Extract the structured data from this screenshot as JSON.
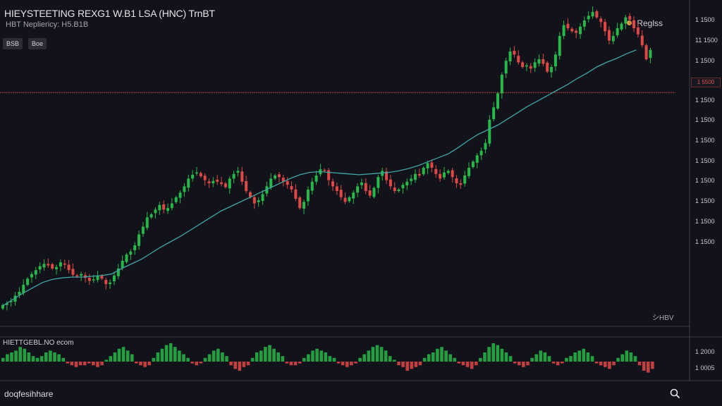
{
  "header": {
    "title": "HIEYSTEETING REXG1 W.B1 LSA (HNC) TrnBT",
    "subtitle": "HBT Nepliericy: H5.B1B",
    "buttons": [
      "BSB",
      "Boe"
    ]
  },
  "legend": {
    "label": "Reglss",
    "color": "#d2a24a"
  },
  "price_line": {
    "label": "1 5500",
    "color": "#c84646"
  },
  "indicator_panel": {
    "title": "HIETTGEBL.NO  ecom",
    "note": "シHBV"
  },
  "footer": {
    "brand": "doqfesihhare"
  },
  "toolbar": {
    "search_icon": "search-icon"
  },
  "colors": {
    "up": "#27b84a",
    "down": "#e04848",
    "ma": "#3fa6a6",
    "background": "#12131a"
  },
  "chart_data": [
    {
      "type": "candlestick",
      "title": "HIEYSTEETING REXG1 W.B1 LSA (HNC) TrnBT",
      "y_tick_labels": [
        "1 5500",
        "1 1500",
        "11 1500",
        "1 1500",
        "1 1500",
        "1 1500",
        "1 1500",
        "1 1500",
        "1 1500",
        "1 1500",
        "1 1500",
        "1 1500"
      ],
      "ylim": [
        100,
        480
      ],
      "reference_line": 397,
      "grid": false,
      "close": [
        123,
        125,
        128,
        135,
        140,
        149,
        157,
        163,
        168,
        173,
        176,
        174,
        170,
        172,
        178,
        175,
        168,
        162,
        160,
        163,
        158,
        154,
        156,
        160,
        157,
        150,
        152,
        161,
        170,
        180,
        188,
        192,
        200,
        214,
        224,
        236,
        240,
        246,
        252,
        246,
        248,
        254,
        262,
        268,
        276,
        286,
        291,
        294,
        289,
        284,
        280,
        283,
        282,
        279,
        275,
        286,
        292,
        296,
        282,
        270,
        262,
        254,
        258,
        266,
        276,
        286,
        290,
        288,
        282,
        278,
        272,
        260,
        248,
        256,
        272,
        282,
        290,
        298,
        296,
        284,
        276,
        270,
        262,
        256,
        262,
        268,
        276,
        281,
        270,
        264,
        274,
        288,
        296,
        284,
        276,
        270,
        272,
        278,
        282,
        286,
        292,
        290,
        300,
        306,
        300,
        292,
        286,
        294,
        296,
        288,
        280,
        278,
        290,
        300,
        308,
        316,
        322,
        332,
        362,
        378,
        396,
        420,
        438,
        450,
        446,
        436,
        430,
        432,
        428,
        436,
        440,
        434,
        424,
        430,
        446,
        470,
        484,
        480,
        476,
        474,
        482,
        490,
        496,
        501,
        494,
        488,
        476,
        464,
        470,
        480,
        486,
        494,
        491,
        480,
        472,
        458,
        440,
        452
      ],
      "ma": [
        122,
        130,
        138,
        145,
        152,
        156,
        158,
        159,
        159,
        160,
        161,
        163,
        170,
        176,
        182,
        190,
        198,
        205,
        212,
        220,
        228,
        236,
        244,
        250,
        256,
        262,
        268,
        274,
        280,
        286,
        291,
        294,
        295,
        294,
        293,
        292,
        291,
        292,
        293,
        294,
        296,
        299,
        303,
        308,
        313,
        318,
        326,
        335,
        343,
        349,
        355,
        363,
        371,
        379,
        386,
        393,
        400,
        407,
        415,
        422,
        430,
        436,
        441,
        447,
        452
      ],
      "ma_start_index": 0,
      "ma_step": 2.4
    },
    {
      "type": "bar",
      "title": "HIETTGEBL.NO  ecom",
      "y_tick_labels": [
        "1 2000",
        "1 0005"
      ],
      "values": [
        0.2,
        0.4,
        0.5,
        0.6,
        0.8,
        0.7,
        0.5,
        0.3,
        0.2,
        0.3,
        0.5,
        0.6,
        0.5,
        0.4,
        0.2,
        -0.1,
        -0.2,
        -0.3,
        -0.2,
        -0.2,
        -0.1,
        -0.2,
        -0.3,
        -0.2,
        0.1,
        0.3,
        0.5,
        0.7,
        0.8,
        0.6,
        0.4,
        -0.1,
        -0.2,
        -0.3,
        -0.2,
        0.2,
        0.5,
        0.7,
        0.9,
        1.0,
        0.8,
        0.6,
        0.4,
        0.2,
        -0.1,
        -0.2,
        -0.1,
        0.2,
        0.4,
        0.6,
        0.7,
        0.5,
        0.3,
        -0.2,
        -0.4,
        -0.5,
        -0.3,
        -0.2,
        0.2,
        0.5,
        0.6,
        0.8,
        0.9,
        0.7,
        0.5,
        0.3,
        -0.1,
        -0.2,
        -0.2,
        -0.1,
        0.2,
        0.4,
        0.6,
        0.7,
        0.6,
        0.5,
        0.3,
        0.2,
        -0.1,
        -0.2,
        -0.3,
        -0.2,
        -0.1,
        0.2,
        0.4,
        0.6,
        0.8,
        0.9,
        0.8,
        0.6,
        0.3,
        0.1,
        -0.2,
        -0.3,
        -0.5,
        -0.4,
        -0.3,
        -0.2,
        0.2,
        0.4,
        0.5,
        0.7,
        0.8,
        0.6,
        0.4,
        0.2,
        -0.1,
        -0.2,
        -0.3,
        -0.4,
        -0.2,
        0.2,
        0.5,
        0.8,
        1.0,
        0.9,
        0.7,
        0.5,
        0.3,
        -0.1,
        -0.2,
        -0.3,
        -0.2,
        0.2,
        0.4,
        0.6,
        0.5,
        0.3,
        -0.1,
        -0.2,
        -0.1,
        0.2,
        0.3,
        0.5,
        0.6,
        0.7,
        0.5,
        0.3,
        -0.1,
        -0.2,
        -0.3,
        -0.4,
        -0.2,
        0.2,
        0.4,
        0.6,
        0.5,
        0.3,
        -0.2,
        -0.5,
        -0.6,
        -0.4
      ]
    }
  ]
}
